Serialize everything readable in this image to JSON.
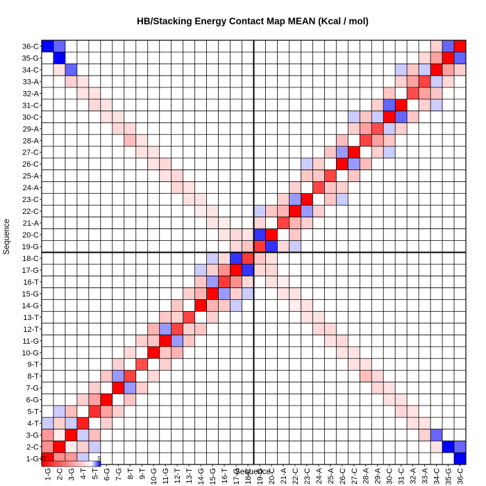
{
  "chart_data": {
    "type": "heatmap",
    "title": "HB/Stacking Energy Contact Map MEAN (Kcal / mol)",
    "xlabel": "Sequence",
    "ylabel": "Sequence",
    "labels": [
      "1-G",
      "2-C",
      "3-G",
      "4-T",
      "5-T",
      "6-G",
      "7-G",
      "8-T",
      "9-T",
      "10-G",
      "11-G",
      "12-T",
      "13-T",
      "14-G",
      "15-G",
      "16-T",
      "17-G",
      "18-C",
      "19-G",
      "20-C",
      "21-A",
      "22-C",
      "23-C",
      "24-A",
      "25-A",
      "26-C",
      "27-C",
      "28-A",
      "29-A",
      "30-C",
      "31-C",
      "32-A",
      "33-A",
      "34-C",
      "35-G",
      "36-C"
    ],
    "colorbar": {
      "min": -27,
      "max": 5,
      "min_label": "-27",
      "max_label": "5",
      "colors": [
        "#ff0000",
        "#ffffff",
        "#0000ff"
      ]
    },
    "colors": {
      "red": "#ff0000",
      "white": "#ffffff",
      "blue": "#0000ff",
      "grid": "#000000"
    },
    "divider_after": "18-C",
    "cells": [
      [
        "1-G",
        "1-G",
        -27
      ],
      [
        "2-C",
        "2-C",
        -27
      ],
      [
        "3-G",
        "3-G",
        -27
      ],
      [
        "4-T",
        "4-T",
        -24
      ],
      [
        "5-T",
        "5-T",
        -22
      ],
      [
        "6-G",
        "6-G",
        -27
      ],
      [
        "7-G",
        "7-G",
        -27
      ],
      [
        "8-T",
        "8-T",
        -20
      ],
      [
        "9-T",
        "9-T",
        -19
      ],
      [
        "10-G",
        "10-G",
        -27
      ],
      [
        "11-G",
        "11-G",
        -27
      ],
      [
        "12-T",
        "12-T",
        -20
      ],
      [
        "13-T",
        "13-T",
        -20
      ],
      [
        "14-G",
        "14-G",
        -27
      ],
      [
        "15-G",
        "15-G",
        -27
      ],
      [
        "16-T",
        "16-T",
        -21
      ],
      [
        "17-G",
        "17-G",
        -27
      ],
      [
        "18-C",
        "18-C",
        -21
      ],
      [
        "19-G",
        "19-G",
        -21
      ],
      [
        "20-C",
        "20-C",
        -27
      ],
      [
        "21-A",
        "21-A",
        -20
      ],
      [
        "22-C",
        "22-C",
        -27
      ],
      [
        "23-C",
        "23-C",
        -27
      ],
      [
        "24-A",
        "24-A",
        -20
      ],
      [
        "25-A",
        "25-A",
        -20
      ],
      [
        "26-C",
        "26-C",
        -27
      ],
      [
        "27-C",
        "27-C",
        -27
      ],
      [
        "28-A",
        "28-A",
        -20
      ],
      [
        "29-A",
        "29-A",
        -19
      ],
      [
        "30-C",
        "30-C",
        -27
      ],
      [
        "31-C",
        "31-C",
        -27
      ],
      [
        "32-A",
        "32-A",
        -19
      ],
      [
        "33-A",
        "33-A",
        -20
      ],
      [
        "34-C",
        "34-C",
        -27
      ],
      [
        "35-G",
        "35-G",
        -27
      ],
      [
        "36-C",
        "36-C",
        -27
      ],
      [
        "1-G",
        "2-C",
        -12
      ],
      [
        "2-C",
        "1-G",
        -12
      ],
      [
        "2-C",
        "3-G",
        -2
      ],
      [
        "3-G",
        "2-C",
        -2
      ],
      [
        "5-T",
        "6-G",
        -10
      ],
      [
        "6-G",
        "5-T",
        -10
      ],
      [
        "10-G",
        "11-G",
        -6
      ],
      [
        "11-G",
        "10-G",
        -6
      ],
      [
        "12-T",
        "13-T",
        -5
      ],
      [
        "13-T",
        "12-T",
        -5
      ],
      [
        "14-G",
        "15-G",
        -8
      ],
      [
        "15-G",
        "14-G",
        -8
      ],
      [
        "16-T",
        "17-G",
        -12
      ],
      [
        "17-G",
        "16-T",
        -12
      ],
      [
        "21-A",
        "22-C",
        -8
      ],
      [
        "22-C",
        "21-A",
        -8
      ],
      [
        "24-A",
        "25-A",
        -6
      ],
      [
        "25-A",
        "24-A",
        -6
      ],
      [
        "28-A",
        "29-A",
        -10
      ],
      [
        "29-A",
        "28-A",
        -10
      ],
      [
        "32-A",
        "33-A",
        -10
      ],
      [
        "33-A",
        "32-A",
        -10
      ],
      [
        "34-C",
        "35-G",
        -10
      ],
      [
        "35-G",
        "34-C",
        -10
      ],
      [
        "1-G",
        "36-C",
        5
      ],
      [
        "36-C",
        "1-G",
        5
      ],
      [
        "2-C",
        "35-G",
        5
      ],
      [
        "35-G",
        "2-C",
        5
      ],
      [
        "3-G",
        "34-C",
        3
      ],
      [
        "34-C",
        "3-G",
        3
      ],
      [
        "17-G",
        "18-C",
        4
      ],
      [
        "18-C",
        "17-G",
        4
      ],
      [
        "19-G",
        "20-C",
        4
      ],
      [
        "20-C",
        "19-G",
        4
      ],
      [
        "22-C",
        "23-C",
        2
      ],
      [
        "23-C",
        "22-C",
        2
      ],
      [
        "26-C",
        "27-C",
        2
      ],
      [
        "27-C",
        "26-C",
        2
      ],
      [
        "30-C",
        "31-C",
        3
      ],
      [
        "31-C",
        "30-C",
        3
      ],
      [
        "7-G",
        "8-T",
        2
      ],
      [
        "8-T",
        "7-G",
        2
      ],
      [
        "11-G",
        "12-T",
        2
      ],
      [
        "12-T",
        "11-G",
        2
      ],
      [
        "15-G",
        "16-T",
        2
      ],
      [
        "16-T",
        "15-G",
        2
      ],
      [
        "29-A",
        "30-C",
        1
      ],
      [
        "30-C",
        "29-A",
        1
      ],
      [
        "33-A",
        "34-C",
        1
      ],
      [
        "34-C",
        "33-A",
        1
      ],
      [
        "1-G",
        "3-G",
        -11
      ],
      [
        "3-G",
        "1-G",
        -11
      ],
      [
        "2-C",
        "4-T",
        -5
      ],
      [
        "4-T",
        "2-C",
        -5
      ],
      [
        "3-G",
        "5-T",
        -7
      ],
      [
        "5-T",
        "3-G",
        -7
      ],
      [
        "4-T",
        "6-G",
        -5
      ],
      [
        "6-G",
        "4-T",
        -5
      ],
      [
        "5-T",
        "7-G",
        -5
      ],
      [
        "7-G",
        "5-T",
        -5
      ],
      [
        "6-G",
        "8-T",
        -6
      ],
      [
        "8-T",
        "6-G",
        -6
      ],
      [
        "7-G",
        "9-T",
        -5
      ],
      [
        "9-T",
        "7-G",
        -5
      ],
      [
        "8-T",
        "10-G",
        -4
      ],
      [
        "10-G",
        "8-T",
        -4
      ],
      [
        "9-T",
        "11-G",
        -5
      ],
      [
        "11-G",
        "9-T",
        -5
      ],
      [
        "10-G",
        "12-T",
        -8
      ],
      [
        "12-T",
        "10-G",
        -8
      ],
      [
        "11-G",
        "13-T",
        -6
      ],
      [
        "13-T",
        "11-G",
        -6
      ],
      [
        "12-T",
        "14-G",
        -6
      ],
      [
        "14-G",
        "12-T",
        -6
      ],
      [
        "13-T",
        "15-G",
        -5
      ],
      [
        "15-G",
        "13-T",
        -5
      ],
      [
        "14-G",
        "16-T",
        -6
      ],
      [
        "16-T",
        "14-G",
        -6
      ],
      [
        "15-G",
        "17-G",
        -5
      ],
      [
        "17-G",
        "15-G",
        -5
      ],
      [
        "16-T",
        "18-C",
        -4
      ],
      [
        "18-C",
        "16-T",
        -4
      ],
      [
        "19-G",
        "21-A",
        -4
      ],
      [
        "21-A",
        "19-G",
        -4
      ],
      [
        "20-C",
        "22-C",
        -6
      ],
      [
        "22-C",
        "20-C",
        -6
      ],
      [
        "21-A",
        "23-C",
        -5
      ],
      [
        "23-C",
        "21-A",
        -5
      ],
      [
        "22-C",
        "24-A",
        -5
      ],
      [
        "24-A",
        "22-C",
        -5
      ],
      [
        "23-C",
        "25-A",
        -6
      ],
      [
        "25-A",
        "23-C",
        -6
      ],
      [
        "24-A",
        "26-C",
        -5
      ],
      [
        "26-C",
        "24-A",
        -5
      ],
      [
        "25-A",
        "27-C",
        -6
      ],
      [
        "27-C",
        "25-A",
        -6
      ],
      [
        "26-C",
        "28-A",
        -7
      ],
      [
        "28-A",
        "26-C",
        -7
      ],
      [
        "27-C",
        "29-A",
        -5
      ],
      [
        "29-A",
        "27-C",
        -5
      ],
      [
        "28-A",
        "30-C",
        -6
      ],
      [
        "30-C",
        "28-A",
        -6
      ],
      [
        "29-A",
        "31-C",
        -5
      ],
      [
        "31-C",
        "29-A",
        -5
      ],
      [
        "30-C",
        "32-A",
        -6
      ],
      [
        "32-A",
        "30-C",
        -6
      ],
      [
        "31-C",
        "33-A",
        -5
      ],
      [
        "33-A",
        "31-C",
        -5
      ],
      [
        "32-A",
        "34-C",
        -6
      ],
      [
        "34-C",
        "32-A",
        -6
      ],
      [
        "33-A",
        "35-G",
        -4
      ],
      [
        "35-G",
        "33-A",
        -4
      ],
      [
        "34-C",
        "36-C",
        -5
      ],
      [
        "36-C",
        "34-C",
        -5
      ],
      [
        "1-G",
        "2-C",
        -12
      ],
      [
        "4-T",
        "3-G",
        1
      ],
      [
        "3-G",
        "4-T",
        1
      ],
      [
        "1-G",
        "4-T",
        1
      ],
      [
        "4-T",
        "1-G",
        1
      ],
      [
        "2-C",
        "5-T",
        1
      ],
      [
        "5-T",
        "2-C",
        1
      ],
      [
        "3-G",
        "33-A",
        -5
      ],
      [
        "33-A",
        "3-G",
        -5
      ],
      [
        "4-T",
        "32-A",
        -3
      ],
      [
        "32-A",
        "4-T",
        -3
      ],
      [
        "4-T",
        "33-A",
        -3
      ],
      [
        "33-A",
        "4-T",
        -3
      ],
      [
        "5-T",
        "32-A",
        -3
      ],
      [
        "32-A",
        "5-T",
        -3
      ],
      [
        "5-T",
        "31-C",
        -4
      ],
      [
        "31-C",
        "5-T",
        -4
      ],
      [
        "6-G",
        "31-C",
        -3
      ],
      [
        "31-C",
        "6-G",
        -3
      ],
      [
        "6-G",
        "30-C",
        -3
      ],
      [
        "30-C",
        "6-G",
        -3
      ],
      [
        "7-G",
        "30-C",
        -3
      ],
      [
        "30-C",
        "7-G",
        -3
      ],
      [
        "7-G",
        "29-A",
        -4
      ],
      [
        "29-A",
        "7-G",
        -4
      ],
      [
        "8-T",
        "29-A",
        -4
      ],
      [
        "29-A",
        "8-T",
        -4
      ],
      [
        "8-T",
        "28-A",
        -7
      ],
      [
        "28-A",
        "8-T",
        -7
      ],
      [
        "9-T",
        "28-A",
        -3
      ],
      [
        "28-A",
        "9-T",
        -3
      ],
      [
        "9-T",
        "27-C",
        -3
      ],
      [
        "27-C",
        "9-T",
        -3
      ],
      [
        "10-G",
        "27-C",
        -3
      ],
      [
        "27-C",
        "10-G",
        -3
      ],
      [
        "10-G",
        "26-C",
        -3
      ],
      [
        "26-C",
        "10-G",
        -3
      ],
      [
        "11-G",
        "26-C",
        -4
      ],
      [
        "26-C",
        "11-G",
        -4
      ],
      [
        "11-G",
        "25-A",
        -3
      ],
      [
        "25-A",
        "11-G",
        -3
      ],
      [
        "12-T",
        "25-A",
        -4
      ],
      [
        "25-A",
        "12-T",
        -4
      ],
      [
        "12-T",
        "24-A",
        -4
      ],
      [
        "24-A",
        "12-T",
        -4
      ],
      [
        "13-T",
        "24-A",
        -3
      ],
      [
        "24-A",
        "13-T",
        -3
      ],
      [
        "13-T",
        "23-C",
        -3
      ],
      [
        "23-C",
        "13-T",
        -3
      ],
      [
        "14-G",
        "23-C",
        -3
      ],
      [
        "23-C",
        "14-G",
        -3
      ],
      [
        "14-G",
        "22-C",
        -2
      ],
      [
        "22-C",
        "14-G",
        -2
      ],
      [
        "15-G",
        "22-C",
        -3
      ],
      [
        "22-C",
        "15-G",
        -3
      ],
      [
        "15-G",
        "21-A",
        -3
      ],
      [
        "21-A",
        "15-G",
        -3
      ],
      [
        "16-T",
        "21-A",
        -2
      ],
      [
        "21-A",
        "16-T",
        -2
      ],
      [
        "16-T",
        "20-C",
        -3
      ],
      [
        "20-C",
        "16-T",
        -3
      ],
      [
        "17-G",
        "20-C",
        -4
      ],
      [
        "20-C",
        "17-G",
        -4
      ],
      [
        "17-G",
        "19-G",
        -4
      ],
      [
        "19-G",
        "17-G",
        -4
      ],
      [
        "18-C",
        "19-G",
        -6
      ],
      [
        "19-G",
        "18-C",
        -6
      ],
      [
        "18-C",
        "20-C",
        -3
      ],
      [
        "20-C",
        "18-C",
        -3
      ],
      [
        "2-C",
        "34-C",
        -3
      ],
      [
        "34-C",
        "2-C",
        -3
      ],
      [
        "2-C",
        "36-C",
        3
      ],
      [
        "36-C",
        "2-C",
        3
      ],
      [
        "19-G",
        "22-C",
        1
      ],
      [
        "22-C",
        "19-G",
        1
      ],
      [
        "18-C",
        "15-G",
        1
      ],
      [
        "15-G",
        "18-C",
        1
      ],
      [
        "17-G",
        "14-G",
        1
      ],
      [
        "14-G",
        "17-G",
        1
      ],
      [
        "26-C",
        "23-C",
        1
      ],
      [
        "23-C",
        "26-C",
        1
      ],
      [
        "30-C",
        "27-C",
        1
      ],
      [
        "27-C",
        "30-C",
        1
      ],
      [
        "31-C",
        "34-C",
        1
      ],
      [
        "34-C",
        "31-C",
        1
      ],
      [
        "35-G",
        "36-C",
        3
      ],
      [
        "36-C",
        "35-G",
        3
      ]
    ]
  }
}
